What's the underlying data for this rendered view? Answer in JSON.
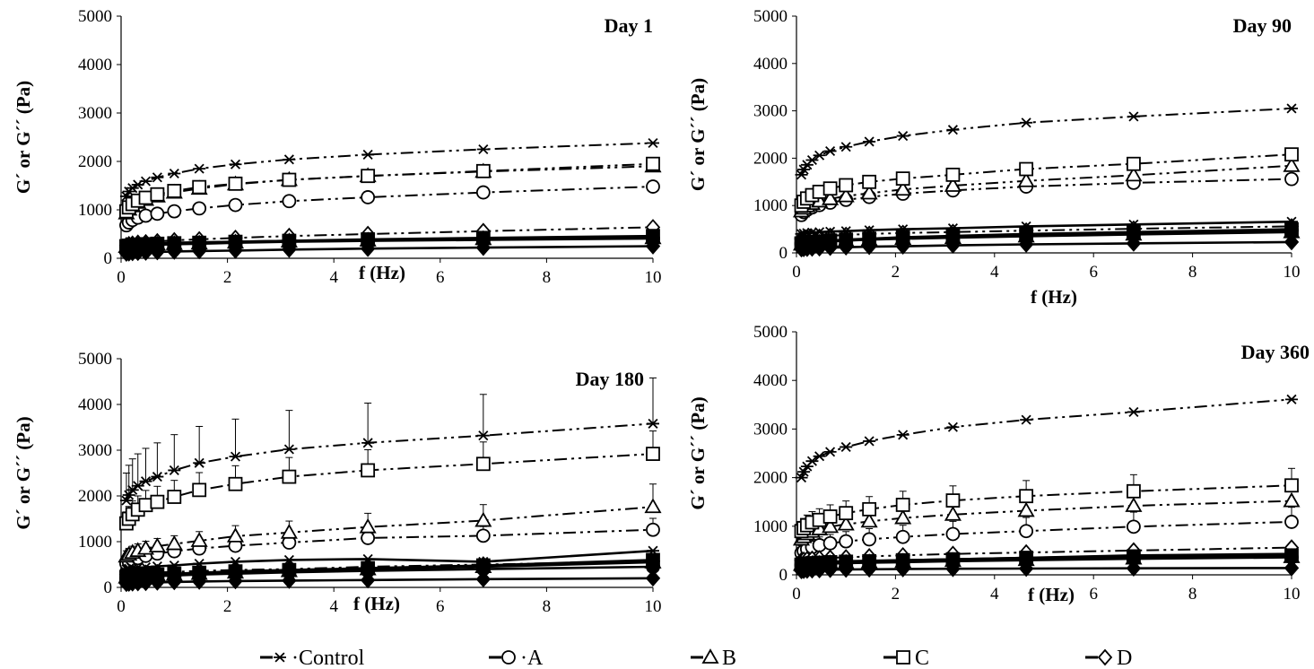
{
  "chart_data": [
    {
      "type": "line",
      "title": "Day 1",
      "xlabel": "f (Hz)",
      "ylabel": "G´ or  G´´ (Pa)",
      "xlim": [
        0,
        10
      ],
      "ylim": [
        0,
        5000
      ],
      "x_ticks": [
        "0",
        "2",
        "4",
        "6",
        "8",
        "10"
      ],
      "y_ticks": [
        "0",
        "1000",
        "2000",
        "3000",
        "4000",
        "5000"
      ],
      "x": [
        0.1,
        0.147,
        0.215,
        0.316,
        0.464,
        0.681,
        1.0,
        1.47,
        2.15,
        3.16,
        4.64,
        6.81,
        10.0
      ],
      "series": [
        {
          "name": "Control",
          "modulus": "G'",
          "values": [
            1280,
            1380,
            1450,
            1520,
            1590,
            1670,
            1750,
            1850,
            1940,
            2040,
            2140,
            2250,
            2380
          ]
        },
        {
          "name": "A",
          "modulus": "G'",
          "values": [
            680,
            740,
            790,
            840,
            880,
            920,
            970,
            1030,
            1100,
            1180,
            1260,
            1360,
            1480
          ]
        },
        {
          "name": "B",
          "modulus": "G'",
          "values": [
            930,
            1010,
            1080,
            1150,
            1210,
            1280,
            1360,
            1440,
            1530,
            1620,
            1700,
            1790,
            1900
          ]
        },
        {
          "name": "C",
          "modulus": "G'",
          "values": [
            970,
            1050,
            1120,
            1190,
            1250,
            1320,
            1390,
            1470,
            1540,
            1620,
            1700,
            1800,
            1950
          ]
        },
        {
          "name": "D",
          "modulus": "G'",
          "values": [
            270,
            290,
            300,
            320,
            330,
            350,
            370,
            390,
            420,
            460,
            500,
            560,
            640
          ]
        },
        {
          "name": "Control",
          "modulus": "G''",
          "values": [
            260,
            270,
            280,
            290,
            300,
            310,
            320,
            330,
            340,
            360,
            380,
            400,
            430
          ]
        },
        {
          "name": "A",
          "modulus": "G''",
          "values": [
            230,
            240,
            250,
            260,
            270,
            280,
            290,
            300,
            320,
            340,
            360,
            380,
            410
          ]
        },
        {
          "name": "B",
          "modulus": "G''",
          "values": [
            240,
            250,
            260,
            270,
            280,
            290,
            300,
            310,
            330,
            350,
            370,
            400,
            420
          ]
        },
        {
          "name": "C",
          "modulus": "G''",
          "values": [
            250,
            260,
            270,
            280,
            290,
            300,
            310,
            320,
            340,
            360,
            390,
            420,
            460
          ]
        },
        {
          "name": "D",
          "modulus": "G''",
          "values": [
            100,
            105,
            110,
            115,
            120,
            130,
            140,
            150,
            160,
            180,
            200,
            220,
            250
          ]
        }
      ]
    },
    {
      "type": "line",
      "title": "Day 90",
      "xlabel": "f (Hz)",
      "ylabel": "G´ or  G´´ (Pa)",
      "xlim": [
        0,
        10
      ],
      "ylim": [
        0,
        5000
      ],
      "x_ticks": [
        "0",
        "2",
        "4",
        "6",
        "8",
        "10"
      ],
      "y_ticks": [
        "0",
        "1000",
        "2000",
        "3000",
        "4000",
        "5000"
      ],
      "x": [
        0.1,
        0.147,
        0.215,
        0.316,
        0.464,
        0.681,
        1.0,
        1.47,
        2.15,
        3.16,
        4.64,
        6.81,
        10.0
      ],
      "series": [
        {
          "name": "Control",
          "modulus": "G'",
          "values": [
            1650,
            1760,
            1860,
            1960,
            2060,
            2150,
            2240,
            2350,
            2470,
            2600,
            2750,
            2880,
            3050
          ]
        },
        {
          "name": "A",
          "modulus": "G'",
          "values": [
            800,
            860,
            910,
            960,
            1010,
            1060,
            1120,
            1180,
            1250,
            1320,
            1400,
            1480,
            1560
          ]
        },
        {
          "name": "B",
          "modulus": "G'",
          "values": [
            880,
            940,
            990,
            1040,
            1090,
            1140,
            1200,
            1260,
            1340,
            1420,
            1520,
            1640,
            1840
          ]
        },
        {
          "name": "C",
          "modulus": "G'",
          "values": [
            1000,
            1080,
            1150,
            1220,
            1290,
            1360,
            1430,
            1500,
            1570,
            1650,
            1770,
            1880,
            2080
          ]
        },
        {
          "name": "D",
          "modulus": "G'",
          "values": [
            300,
            310,
            320,
            330,
            340,
            360,
            380,
            400,
            420,
            440,
            470,
            510,
            560
          ]
        },
        {
          "name": "Control",
          "modulus": "G''",
          "values": [
            400,
            410,
            420,
            430,
            440,
            450,
            460,
            480,
            500,
            520,
            560,
            600,
            660
          ]
        },
        {
          "name": "A",
          "modulus": "G''",
          "values": [
            190,
            200,
            210,
            220,
            230,
            250,
            270,
            290,
            320,
            350,
            390,
            430,
            480
          ]
        },
        {
          "name": "B",
          "modulus": "G''",
          "values": [
            180,
            190,
            200,
            210,
            220,
            240,
            260,
            280,
            300,
            320,
            350,
            390,
            440
          ]
        },
        {
          "name": "C",
          "modulus": "G''",
          "values": [
            200,
            210,
            220,
            230,
            240,
            260,
            280,
            300,
            330,
            360,
            400,
            440,
            500
          ]
        },
        {
          "name": "D",
          "modulus": "G''",
          "values": [
            80,
            85,
            90,
            95,
            100,
            110,
            120,
            130,
            140,
            160,
            180,
            200,
            230
          ]
        }
      ]
    },
    {
      "type": "line",
      "title": "Day 180",
      "xlabel": "f (Hz)",
      "ylabel": "G´ or  G´´ (Pa)",
      "xlim": [
        0,
        10
      ],
      "ylim": [
        0,
        5000
      ],
      "x_ticks": [
        "0",
        "2",
        "4",
        "6",
        "8",
        "10"
      ],
      "y_ticks": [
        "0",
        "1000",
        "2000",
        "3000",
        "4000",
        "5000"
      ],
      "x": [
        0.1,
        0.147,
        0.215,
        0.316,
        0.464,
        0.681,
        1.0,
        1.47,
        2.15,
        3.16,
        4.64,
        6.81,
        10.0
      ],
      "series": [
        {
          "name": "Control",
          "modulus": "G'",
          "values": [
            1900,
            2020,
            2130,
            2220,
            2320,
            2420,
            2560,
            2720,
            2860,
            3020,
            3160,
            3320,
            3580
          ],
          "error": [
            600,
            650,
            680,
            700,
            720,
            740,
            780,
            800,
            820,
            850,
            870,
            900,
            1000
          ]
        },
        {
          "name": "A",
          "modulus": "G'",
          "values": [
            520,
            560,
            600,
            640,
            690,
            740,
            790,
            850,
            910,
            980,
            1080,
            1130,
            1260
          ],
          "error": [
            100,
            100,
            110,
            110,
            120,
            120,
            130,
            140,
            150,
            160,
            180,
            200,
            250
          ]
        },
        {
          "name": "B",
          "modulus": "G'",
          "values": [
            680,
            720,
            760,
            800,
            850,
            900,
            950,
            1020,
            1120,
            1200,
            1320,
            1460,
            1760
          ],
          "error": [
            120,
            130,
            140,
            150,
            160,
            170,
            180,
            200,
            230,
            250,
            300,
            350,
            500
          ]
        },
        {
          "name": "C",
          "modulus": "G'",
          "values": [
            1400,
            1500,
            1600,
            1700,
            1800,
            1870,
            1980,
            2130,
            2260,
            2420,
            2560,
            2700,
            2920
          ],
          "error": [
            250,
            270,
            290,
            300,
            320,
            340,
            360,
            380,
            400,
            420,
            450,
            480,
            500
          ]
        },
        {
          "name": "D",
          "modulus": "G'",
          "values": [
            280,
            290,
            300,
            310,
            320,
            330,
            340,
            360,
            380,
            400,
            450,
            500,
            570
          ]
        },
        {
          "name": "Control",
          "modulus": "G''",
          "values": [
            400,
            410,
            420,
            430,
            440,
            460,
            480,
            520,
            560,
            600,
            620,
            560,
            800
          ]
        },
        {
          "name": "A",
          "modulus": "G''",
          "values": [
            200,
            210,
            220,
            230,
            240,
            250,
            260,
            280,
            300,
            330,
            360,
            400,
            450
          ]
        },
        {
          "name": "B",
          "modulus": "G''",
          "values": [
            220,
            230,
            240,
            250,
            260,
            270,
            280,
            300,
            330,
            360,
            400,
            450,
            550
          ]
        },
        {
          "name": "C",
          "modulus": "G''",
          "values": [
            230,
            240,
            250,
            260,
            270,
            280,
            300,
            320,
            350,
            380,
            420,
            480,
            600
          ]
        },
        {
          "name": "D",
          "modulus": "G''",
          "values": [
            80,
            85,
            90,
            95,
            100,
            110,
            120,
            130,
            140,
            150,
            160,
            180,
            200
          ]
        }
      ]
    },
    {
      "type": "line",
      "title": "Day 360",
      "xlabel": "f (Hz)",
      "ylabel": "G´ or  G´´ (Pa)",
      "xlim": [
        0,
        10
      ],
      "ylim": [
        0,
        5000
      ],
      "x_ticks": [
        "0",
        "2",
        "4",
        "6",
        "8",
        "10"
      ],
      "y_ticks": [
        "0",
        "1000",
        "2000",
        "3000",
        "4000",
        "5000"
      ],
      "x": [
        0.1,
        0.147,
        0.215,
        0.316,
        0.464,
        0.681,
        1.0,
        1.47,
        2.15,
        3.16,
        4.64,
        6.81,
        10.0
      ],
      "series": [
        {
          "name": "Control",
          "modulus": "G'",
          "values": [
            2000,
            2120,
            2230,
            2340,
            2440,
            2530,
            2630,
            2750,
            2880,
            3040,
            3190,
            3350,
            3610
          ]
        },
        {
          "name": "A",
          "modulus": "G'",
          "values": [
            450,
            490,
            530,
            570,
            610,
            650,
            690,
            730,
            780,
            840,
            900,
            990,
            1090
          ],
          "error": [
            150,
            150,
            160,
            160,
            170,
            180,
            200,
            220,
            240,
            260,
            280,
            300,
            300
          ]
        },
        {
          "name": "B",
          "modulus": "G'",
          "values": [
            730,
            780,
            840,
            890,
            940,
            990,
            1040,
            1100,
            1170,
            1240,
            1320,
            1420,
            1520
          ]
        },
        {
          "name": "C",
          "modulus": "G'",
          "values": [
            900,
            960,
            1020,
            1080,
            1130,
            1200,
            1270,
            1350,
            1440,
            1530,
            1620,
            1720,
            1840
          ],
          "error": [
            200,
            200,
            210,
            220,
            230,
            240,
            250,
            260,
            280,
            300,
            320,
            340,
            350
          ]
        },
        {
          "name": "D",
          "modulus": "G'",
          "values": [
            300,
            310,
            320,
            330,
            340,
            350,
            360,
            380,
            400,
            430,
            460,
            500,
            560
          ]
        },
        {
          "name": "Control",
          "modulus": "G''",
          "values": [
            240,
            240,
            250,
            250,
            260,
            270,
            280,
            290,
            300,
            320,
            350,
            400,
            430
          ]
        },
        {
          "name": "A",
          "modulus": "G''",
          "values": [
            200,
            205,
            210,
            215,
            220,
            230,
            240,
            250,
            260,
            280,
            300,
            330,
            360
          ]
        },
        {
          "name": "B",
          "modulus": "G''",
          "values": [
            210,
            215,
            220,
            225,
            230,
            240,
            250,
            260,
            270,
            290,
            310,
            340,
            370
          ]
        },
        {
          "name": "C",
          "modulus": "G''",
          "values": [
            210,
            220,
            230,
            240,
            250,
            260,
            270,
            280,
            300,
            320,
            350,
            380,
            400
          ]
        },
        {
          "name": "D",
          "modulus": "G''",
          "values": [
            80,
            85,
            90,
            95,
            100,
            105,
            110,
            115,
            120,
            125,
            130,
            135,
            140
          ]
        }
      ]
    }
  ],
  "legend": [
    {
      "name": "Control",
      "marker": "asterisk",
      "text": "·Control"
    },
    {
      "name": "A",
      "marker": "circle",
      "text": "·A"
    },
    {
      "name": "B",
      "marker": "triangle",
      "text": "B"
    },
    {
      "name": "C",
      "marker": "square",
      "text": "C"
    },
    {
      "name": "D",
      "marker": "diamond",
      "text": "D"
    }
  ]
}
